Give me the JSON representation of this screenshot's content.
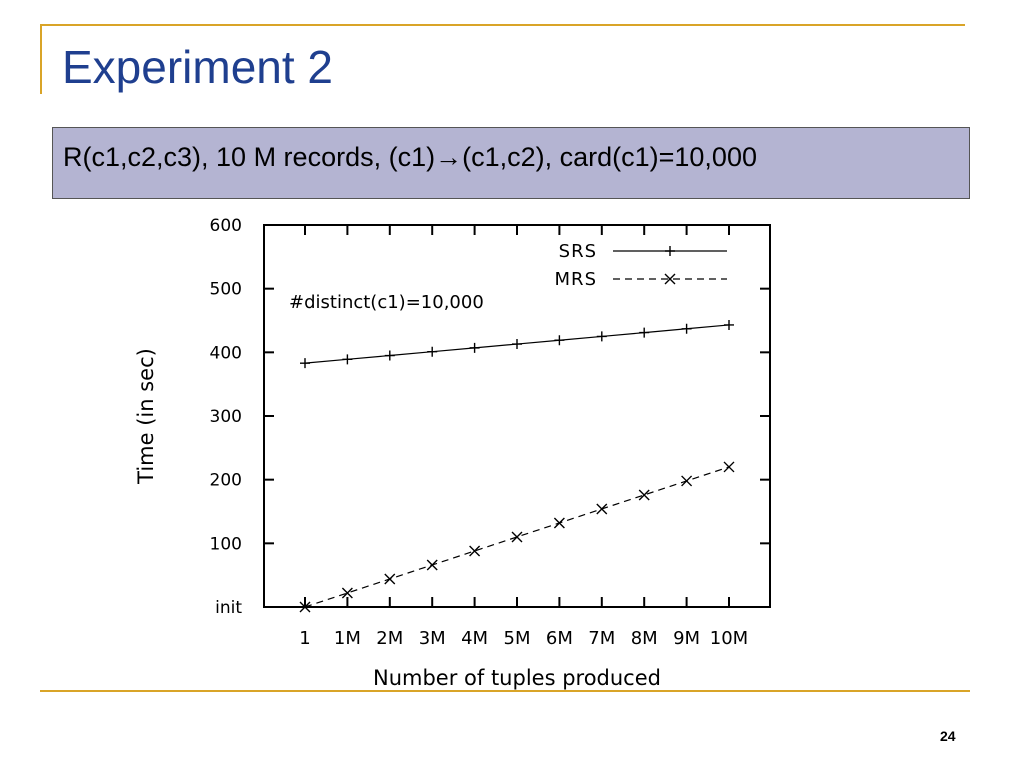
{
  "slide": {
    "title": "Experiment 2",
    "subtitle_prefix": "R(c1,c2,c3), 10 M records, (c1)",
    "subtitle_arrow": "→",
    "subtitle_suffix": "(c1,c2), card(c1)=10,000",
    "page_number": "24"
  },
  "colors": {
    "title": "#1f3f8f",
    "accent_rule": "#d9a428",
    "subtitle_bg": "#b4b4d2"
  },
  "chart_data": {
    "type": "line",
    "ylabel": "Time (in sec)",
    "xlabel": "Number of tuples produced",
    "annotation": "#distinct(c1)=10,000",
    "categories": [
      "1",
      "1M",
      "2M",
      "3M",
      "4M",
      "5M",
      "6M",
      "7M",
      "8M",
      "9M",
      "10M"
    ],
    "y_ticks": [
      {
        "value": 0,
        "label": "init"
      },
      {
        "value": 100,
        "label": "100"
      },
      {
        "value": 200,
        "label": "200"
      },
      {
        "value": 300,
        "label": "300"
      },
      {
        "value": 400,
        "label": "400"
      },
      {
        "value": 500,
        "label": "500"
      },
      {
        "value": 600,
        "label": "600"
      }
    ],
    "ylim": [
      0,
      600
    ],
    "grid": false,
    "legend_position": "top-right",
    "series": [
      {
        "name": "SRS",
        "marker": "plus",
        "dash": "solid",
        "values": [
          383,
          389,
          395,
          401,
          407,
          413,
          419,
          425,
          431,
          437,
          443
        ]
      },
      {
        "name": "MRS",
        "marker": "x",
        "dash": "dashed",
        "values": [
          0,
          22,
          44,
          66,
          88,
          110,
          132,
          154,
          176,
          198,
          220
        ]
      }
    ]
  }
}
